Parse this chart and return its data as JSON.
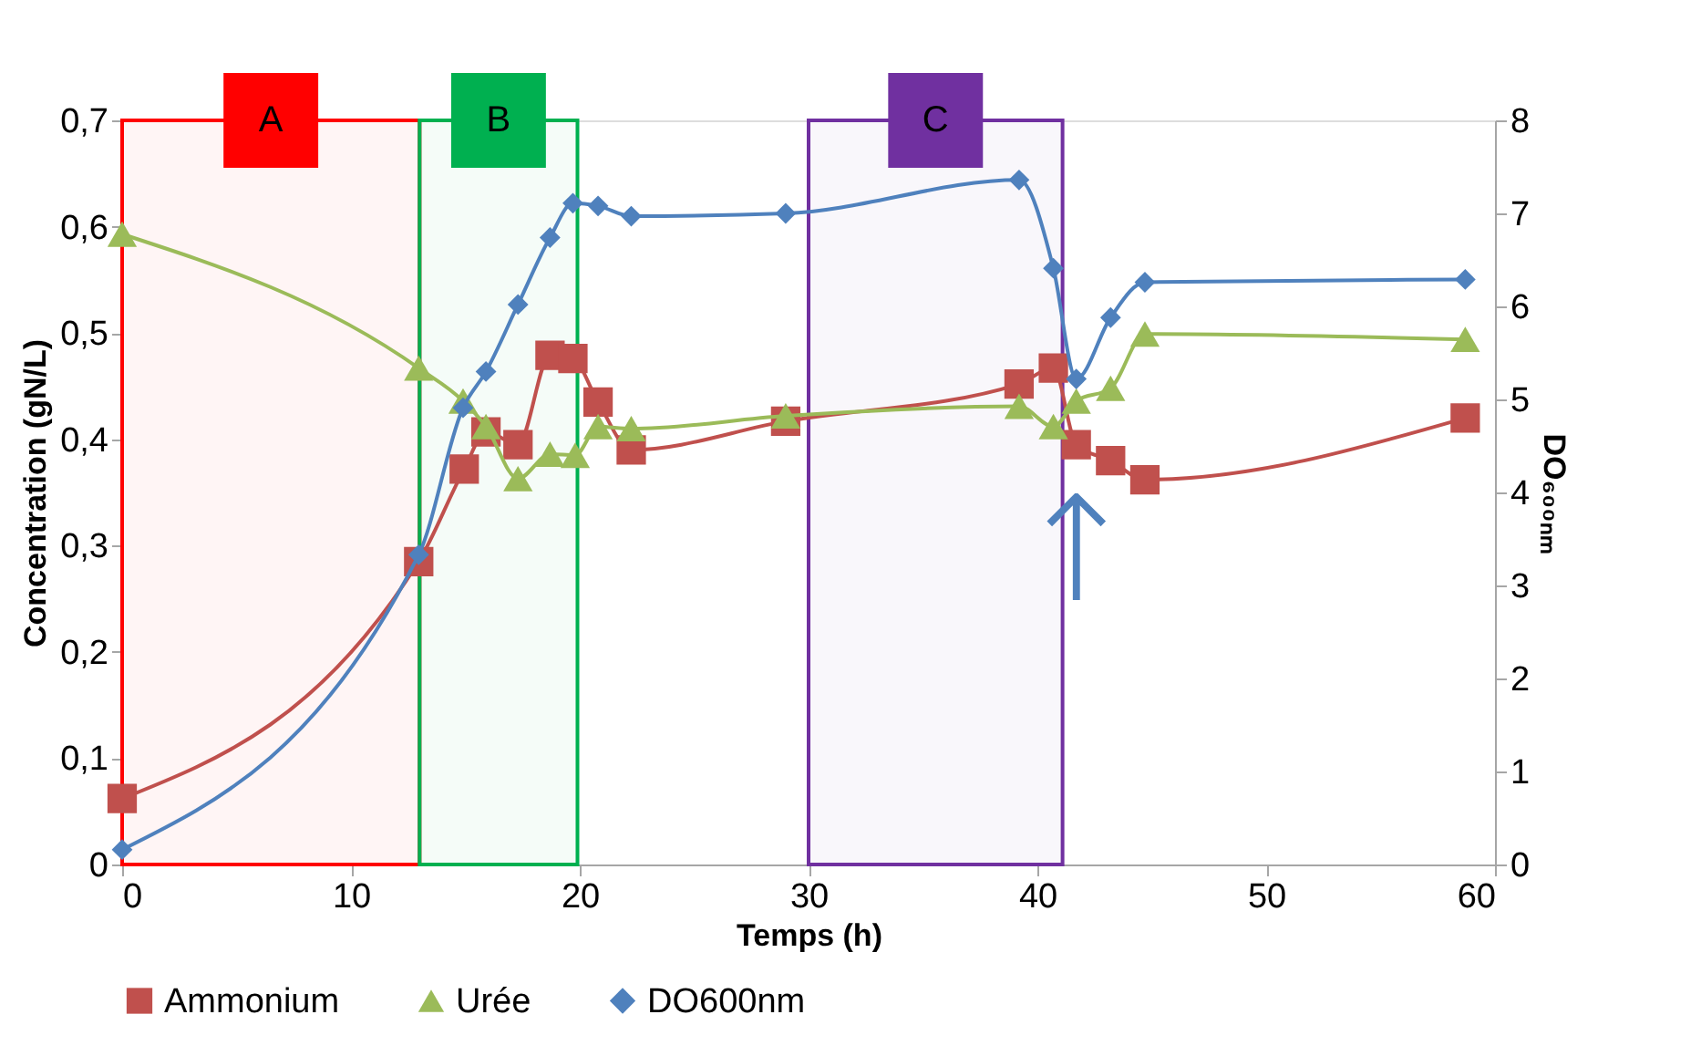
{
  "chart_data": {
    "type": "line",
    "xlabel": "Temps (h)",
    "ylabel": "Concentration (gN/L)",
    "y2label": "DO₆₀₀ₙₘ",
    "xlim": [
      0,
      60
    ],
    "xticks": [
      0,
      10,
      20,
      30,
      40,
      50,
      60
    ],
    "ylim": [
      0,
      0.7
    ],
    "yticks": [
      {
        "value": 0,
        "label": "0"
      },
      {
        "value": 0.1,
        "label": "0,1"
      },
      {
        "value": 0.2,
        "label": "0,2"
      },
      {
        "value": 0.3,
        "label": "0,3"
      },
      {
        "value": 0.4,
        "label": "0,4"
      },
      {
        "value": 0.5,
        "label": "0,5"
      },
      {
        "value": 0.6,
        "label": "0,6"
      },
      {
        "value": 0.7,
        "label": "0,7"
      }
    ],
    "y2lim": [
      0,
      8
    ],
    "y2ticks": [
      0,
      1,
      2,
      3,
      4,
      5,
      6,
      7,
      8
    ],
    "legend": "bottom",
    "series": [
      {
        "name": "Ammonium",
        "color": "#c0504d",
        "marker": "square",
        "x": [
          0,
          12.96,
          14.95,
          15.9,
          17.3,
          18.7,
          19.7,
          20.8,
          22.25,
          29.0,
          39.2,
          40.7,
          41.7,
          43.2,
          44.7,
          58.7
        ],
        "values": [
          0.062,
          0.285,
          0.372,
          0.407,
          0.395,
          0.479,
          0.476,
          0.435,
          0.39,
          0.417,
          0.452,
          0.467,
          0.395,
          0.38,
          0.362,
          0.42
        ]
      },
      {
        "name": "Urée",
        "color": "#9bbb59",
        "marker": "triangle",
        "x": [
          0,
          12.96,
          14.9,
          15.9,
          17.3,
          18.7,
          19.8,
          20.8,
          22.25,
          29.0,
          39.2,
          40.7,
          41.7,
          43.2,
          44.7,
          58.7
        ],
        "values": [
          0.593,
          0.467,
          0.436,
          0.412,
          0.363,
          0.386,
          0.385,
          0.412,
          0.41,
          0.422,
          0.431,
          0.412,
          0.436,
          0.448,
          0.499,
          0.494
        ]
      },
      {
        "name": "DO600nm",
        "color": "#4f81bd",
        "marker": "diamond",
        "axis": "y2",
        "x": [
          0,
          12.96,
          14.9,
          15.9,
          17.3,
          18.7,
          19.7,
          20.8,
          22.25,
          29.0,
          39.2,
          40.7,
          41.7,
          43.2,
          44.7,
          58.7
        ],
        "values": [
          0.16,
          3.33,
          4.91,
          5.3,
          6.02,
          6.74,
          7.11,
          7.08,
          6.97,
          7.0,
          7.36,
          6.41,
          5.22,
          5.88,
          6.26,
          6.29
        ]
      }
    ],
    "bands": [
      {
        "axis": "x",
        "from": 0,
        "to": 13,
        "label": "A",
        "color": "#ff0000"
      },
      {
        "axis": "x",
        "from": 13,
        "to": 19.9,
        "label": "B",
        "color": "#00b050"
      },
      {
        "axis": "x",
        "from": 30,
        "to": 41.1,
        "label": "C",
        "color": "#7030a0"
      }
    ],
    "annotations": [
      {
        "text": "↑",
        "x": 41.7,
        "y": 0.395
      }
    ]
  }
}
